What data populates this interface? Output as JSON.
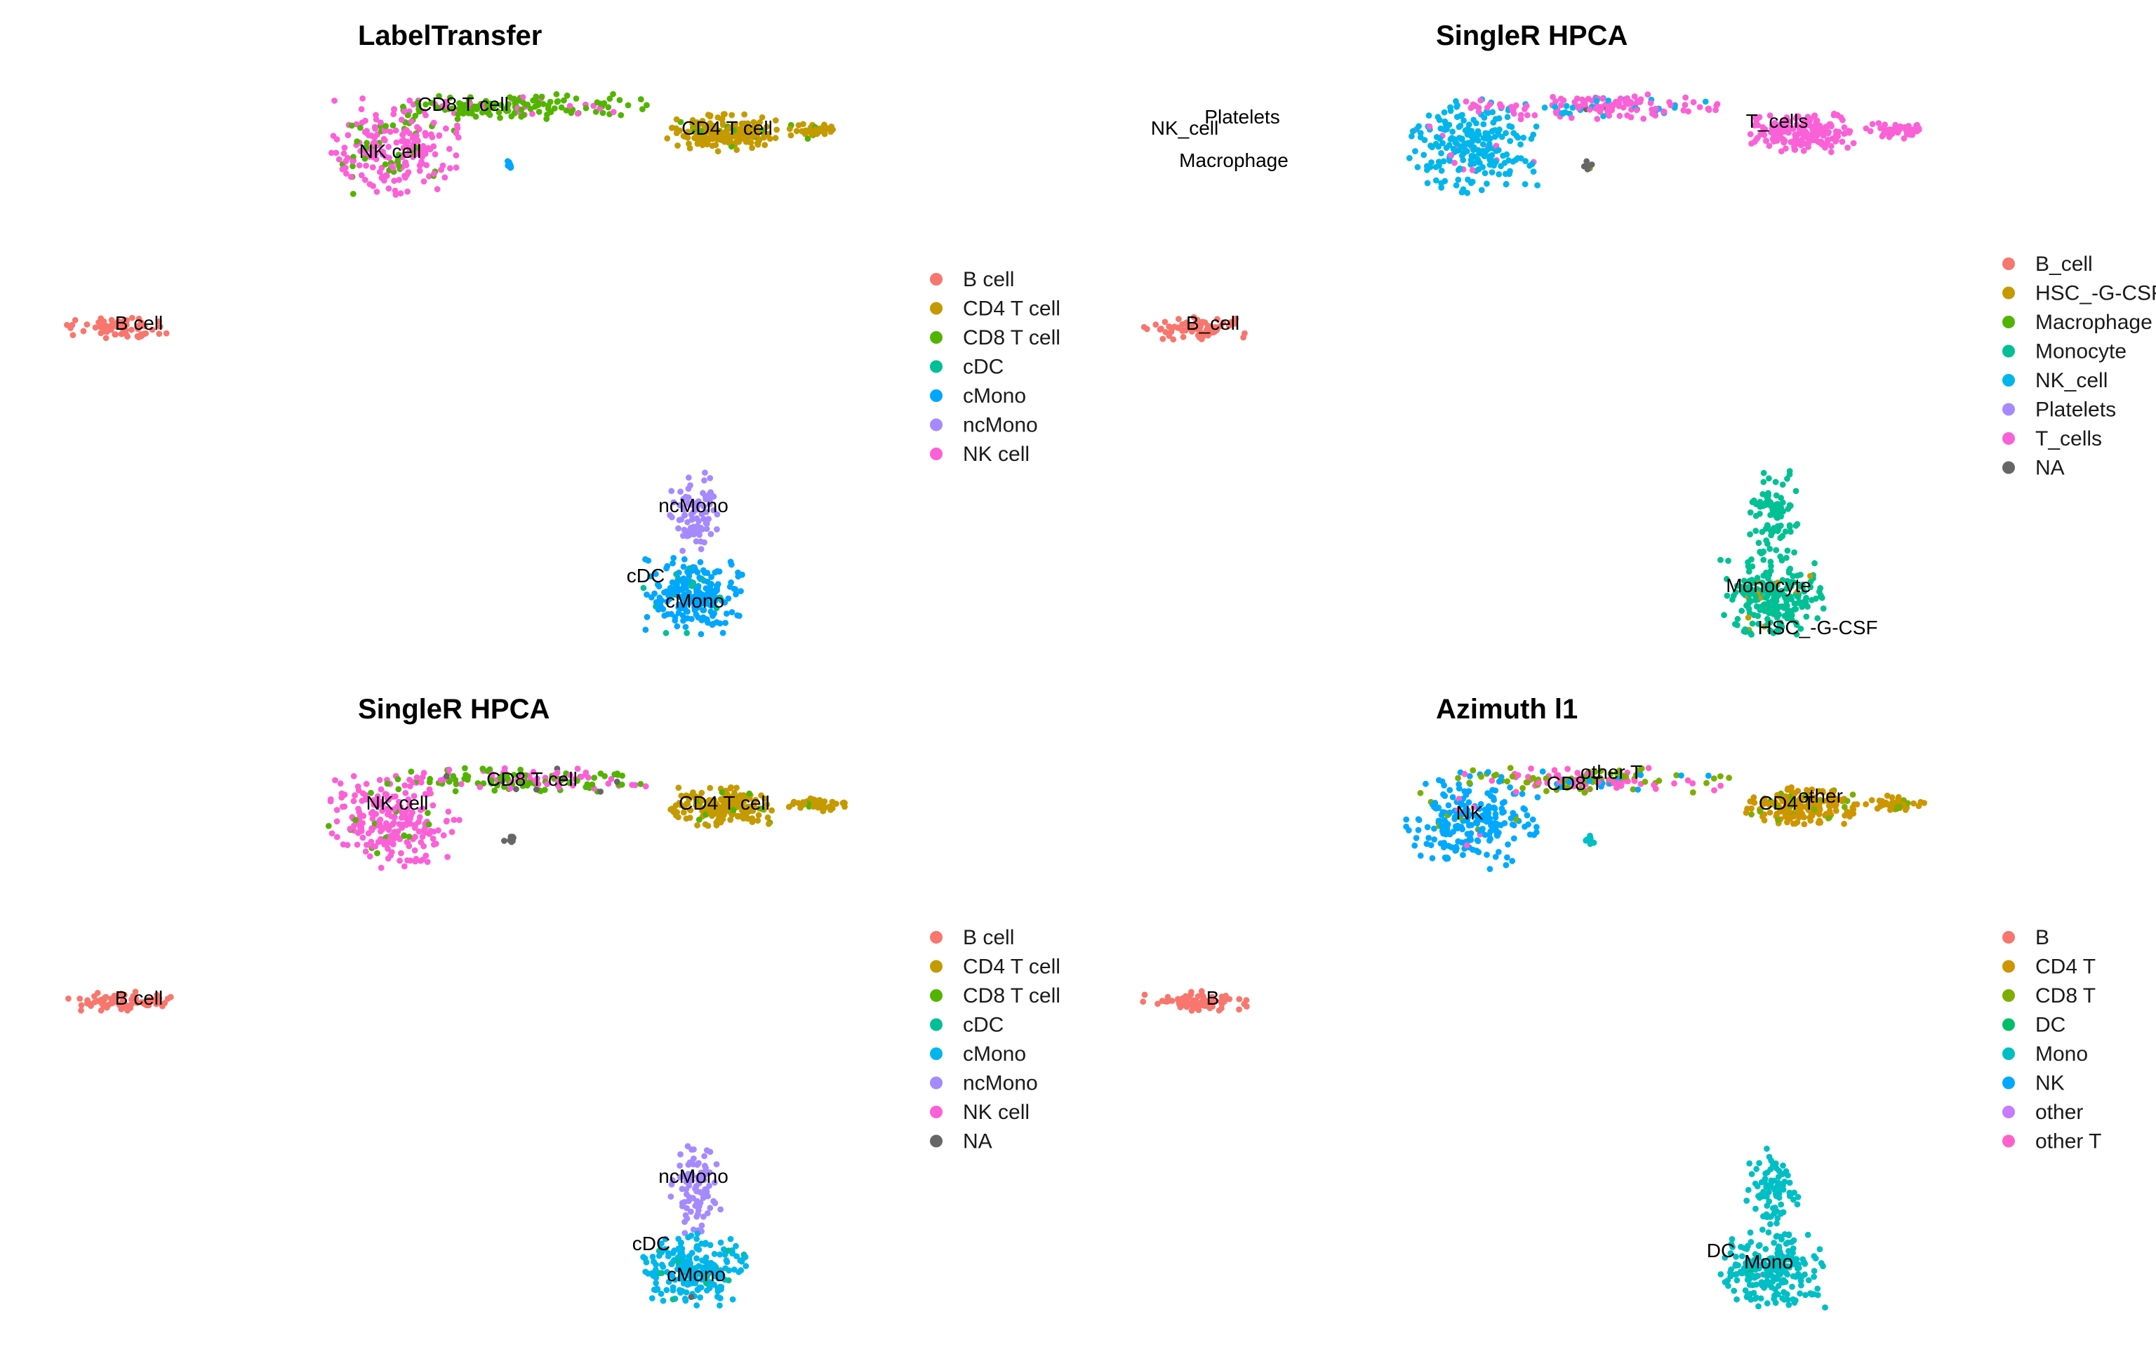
{
  "chart_data": [
    {
      "type": "scatter",
      "title": "LabelTransfer",
      "legend_position": "right",
      "grid": false,
      "axes": false,
      "legend": [
        {
          "name": "B cell",
          "color": "#F8766D"
        },
        {
          "name": "CD4 T cell",
          "color": "#C49A00"
        },
        {
          "name": "CD8 T cell",
          "color": "#53B400"
        },
        {
          "name": "cDC",
          "color": "#00C094"
        },
        {
          "name": "cMono",
          "color": "#00A6FF"
        },
        {
          "name": "ncMono",
          "color": "#A58AFF"
        },
        {
          "name": "NK cell",
          "color": "#FB61D7"
        }
      ],
      "labels": [
        "CD8 T cell",
        "CD4 T cell",
        "NK cell",
        "B cell",
        "ncMono",
        "cDC",
        "cMono"
      ],
      "clusters": [
        {
          "region": "nk",
          "mix": [
            [
              "NK cell",
              0.82
            ],
            [
              "CD8 T cell",
              0.18
            ]
          ]
        },
        {
          "region": "tband",
          "mix": [
            [
              "CD8 T cell",
              0.88
            ],
            [
              "NK cell",
              0.12
            ]
          ]
        },
        {
          "region": "cd4",
          "mix": [
            [
              "CD4 T cell",
              0.9
            ],
            [
              "CD8 T cell",
              0.1
            ]
          ]
        },
        {
          "region": "smallblob",
          "mix": [
            [
              "cMono",
              1.0
            ]
          ]
        },
        {
          "region": "bcell",
          "mix": [
            [
              "B cell",
              1.0
            ]
          ]
        },
        {
          "region": "monotop",
          "mix": [
            [
              "ncMono",
              1.0
            ]
          ]
        },
        {
          "region": "monobottom",
          "mix": [
            [
              "cMono",
              0.94
            ],
            [
              "cDC",
              0.06
            ]
          ]
        }
      ]
    },
    {
      "type": "scatter",
      "title": "SingleR HPCA",
      "legend_position": "right",
      "grid": false,
      "axes": false,
      "legend": [
        {
          "name": "B_cell",
          "color": "#F8766D"
        },
        {
          "name": "HSC_-G-CSF",
          "color": "#C49A00"
        },
        {
          "name": "Macrophage",
          "color": "#53B400"
        },
        {
          "name": "Monocyte",
          "color": "#00C094"
        },
        {
          "name": "NK_cell",
          "color": "#00B6EB"
        },
        {
          "name": "Platelets",
          "color": "#A58AFF"
        },
        {
          "name": "T_cells",
          "color": "#FB61D7"
        },
        {
          "name": "NA",
          "color": "#666666"
        }
      ],
      "labels": [
        "NK_cell",
        "Platelets",
        "Macrophage",
        "T_cells",
        "B_cell",
        "Monocyte",
        "HSC_-G-CSF"
      ],
      "clusters": [
        {
          "region": "nk",
          "mix": [
            [
              "NK_cell",
              0.95
            ],
            [
              "T_cells",
              0.05
            ]
          ]
        },
        {
          "region": "tband",
          "mix": [
            [
              "T_cells",
              0.75
            ],
            [
              "NK_cell",
              0.2
            ],
            [
              "NA",
              0.05
            ]
          ]
        },
        {
          "region": "cd4",
          "mix": [
            [
              "T_cells",
              1.0
            ]
          ]
        },
        {
          "region": "smallblob",
          "mix": [
            [
              "NA",
              0.7
            ],
            [
              "Macrophage",
              0.3
            ]
          ]
        },
        {
          "region": "bcell",
          "mix": [
            [
              "B_cell",
              1.0
            ]
          ]
        },
        {
          "region": "monotop",
          "mix": [
            [
              "Monocyte",
              1.0
            ]
          ]
        },
        {
          "region": "monobottom",
          "mix": [
            [
              "Monocyte",
              0.96
            ],
            [
              "HSC_-G-CSF",
              0.04
            ]
          ]
        }
      ]
    },
    {
      "type": "scatter",
      "title": "SingleR HPCA",
      "legend_position": "right",
      "grid": false,
      "axes": false,
      "legend": [
        {
          "name": "B cell",
          "color": "#F8766D"
        },
        {
          "name": "CD4 T cell",
          "color": "#C49A00"
        },
        {
          "name": "CD8 T cell",
          "color": "#53B400"
        },
        {
          "name": "cDC",
          "color": "#00C094"
        },
        {
          "name": "cMono",
          "color": "#00B6EB"
        },
        {
          "name": "ncMono",
          "color": "#A58AFF"
        },
        {
          "name": "NK cell",
          "color": "#FB61D7"
        },
        {
          "name": "NA",
          "color": "#666666"
        }
      ],
      "labels": [
        "NK cell",
        "CD8 T cell",
        "CD4 T cell",
        "B cell",
        "ncMono",
        "cDC",
        "cMono"
      ],
      "clusters": [
        {
          "region": "nk",
          "mix": [
            [
              "NK cell",
              0.93
            ],
            [
              "CD8 T cell",
              0.07
            ]
          ]
        },
        {
          "region": "tband",
          "mix": [
            [
              "NK cell",
              0.45
            ],
            [
              "CD8 T cell",
              0.5
            ],
            [
              "NA",
              0.05
            ]
          ]
        },
        {
          "region": "cd4",
          "mix": [
            [
              "CD4 T cell",
              0.95
            ],
            [
              "CD8 T cell",
              0.05
            ]
          ]
        },
        {
          "region": "smallblob",
          "mix": [
            [
              "NA",
              0.8
            ],
            [
              "cMono",
              0.2
            ]
          ]
        },
        {
          "region": "bcell",
          "mix": [
            [
              "B cell",
              1.0
            ]
          ]
        },
        {
          "region": "monotop",
          "mix": [
            [
              "ncMono",
              1.0
            ]
          ]
        },
        {
          "region": "monobottom",
          "mix": [
            [
              "cMono",
              0.93
            ],
            [
              "cDC",
              0.04
            ],
            [
              "NA",
              0.03
            ]
          ]
        }
      ]
    },
    {
      "type": "scatter",
      "title": "Azimuth l1",
      "legend_position": "right",
      "grid": false,
      "axes": false,
      "legend": [
        {
          "name": "B",
          "color": "#F8766D"
        },
        {
          "name": "CD4 T",
          "color": "#CD9600"
        },
        {
          "name": "CD8 T",
          "color": "#7CAE00"
        },
        {
          "name": "DC",
          "color": "#00BE67"
        },
        {
          "name": "Mono",
          "color": "#00BFC4"
        },
        {
          "name": "NK",
          "color": "#00A9FF"
        },
        {
          "name": "other",
          "color": "#C77CFF"
        },
        {
          "name": "other T",
          "color": "#FF61CC"
        }
      ],
      "labels": [
        "other T",
        "CD8 T",
        "NK",
        "CD4 T",
        "other",
        "B",
        "DC",
        "Mono"
      ],
      "clusters": [
        {
          "region": "nk",
          "mix": [
            [
              "NK",
              0.93
            ],
            [
              "CD8 T",
              0.04
            ],
            [
              "other T",
              0.03
            ]
          ]
        },
        {
          "region": "tband",
          "mix": [
            [
              "other T",
              0.4
            ],
            [
              "CD8 T",
              0.45
            ],
            [
              "NK",
              0.15
            ]
          ]
        },
        {
          "region": "cd4",
          "mix": [
            [
              "CD4 T",
              0.85
            ],
            [
              "CD8 T",
              0.15
            ]
          ]
        },
        {
          "region": "smallblob",
          "mix": [
            [
              "Mono",
              1.0
            ]
          ]
        },
        {
          "region": "bcell",
          "mix": [
            [
              "B",
              1.0
            ]
          ]
        },
        {
          "region": "monotop",
          "mix": [
            [
              "Mono",
              1.0
            ]
          ]
        },
        {
          "region": "monobottom",
          "mix": [
            [
              "Mono",
              0.97
            ],
            [
              "DC",
              0.02
            ],
            [
              "other T",
              0.01
            ]
          ]
        }
      ]
    }
  ]
}
